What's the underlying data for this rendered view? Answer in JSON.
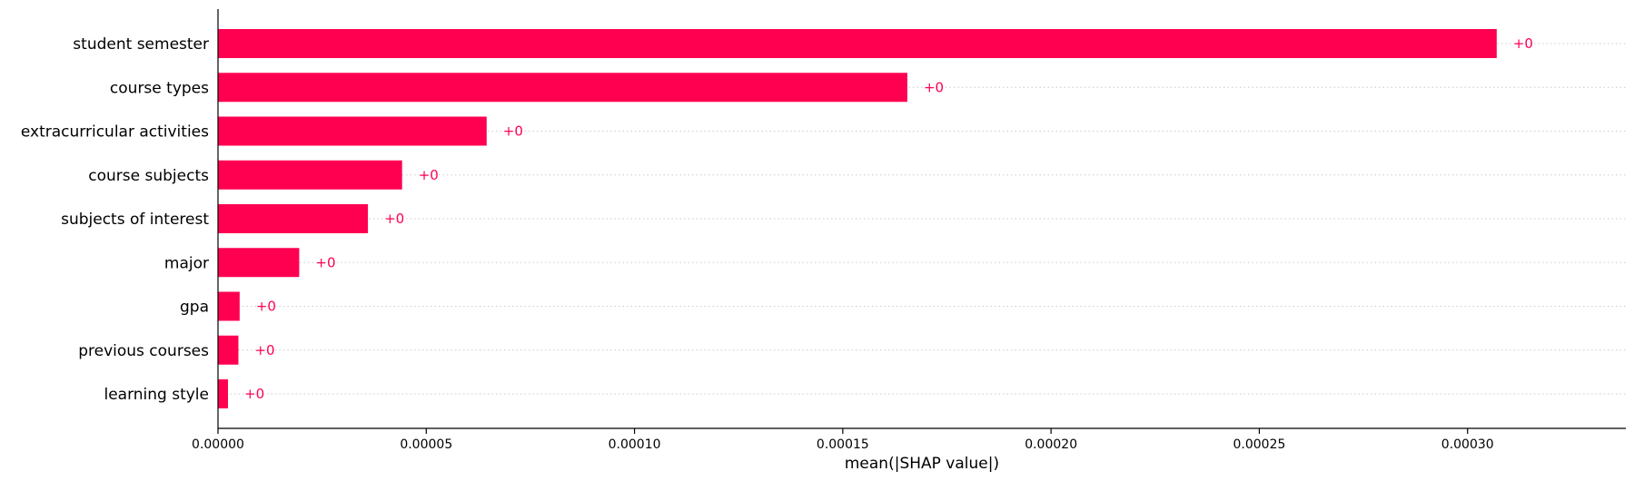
{
  "chart_data": {
    "type": "bar",
    "orientation": "horizontal",
    "title": "",
    "xlabel": "mean(|SHAP value|)",
    "ylabel": "",
    "categories": [
      "student semester",
      "course types",
      "extracurricular activities",
      "course subjects",
      "subjects of interest",
      "major",
      "gpa",
      "previous courses",
      "learning style"
    ],
    "values": [
      0.000307,
      0.0001655,
      6.45e-05,
      4.42e-05,
      3.6e-05,
      1.95e-05,
      5.2e-06,
      4.9e-06,
      2.4e-06
    ],
    "data_labels": [
      "+0",
      "+0",
      "+0",
      "+0",
      "+0",
      "+0",
      "+0",
      "+0",
      "+0"
    ],
    "xlim": [
      0,
      0.000338
    ],
    "xticks": [
      0,
      5e-05,
      0.0001,
      0.00015,
      0.0002,
      0.00025,
      0.0003
    ],
    "xtick_labels": [
      "0.00000",
      "0.00005",
      "0.00010",
      "0.00015",
      "0.00020",
      "0.00025",
      "0.00030"
    ],
    "grid": "horizontal dotted per category",
    "legend": "none",
    "colors": {
      "bar": "#ff0051",
      "data_label": "#ff0051",
      "grid": "#cccccc",
      "axis": "#000000"
    }
  }
}
